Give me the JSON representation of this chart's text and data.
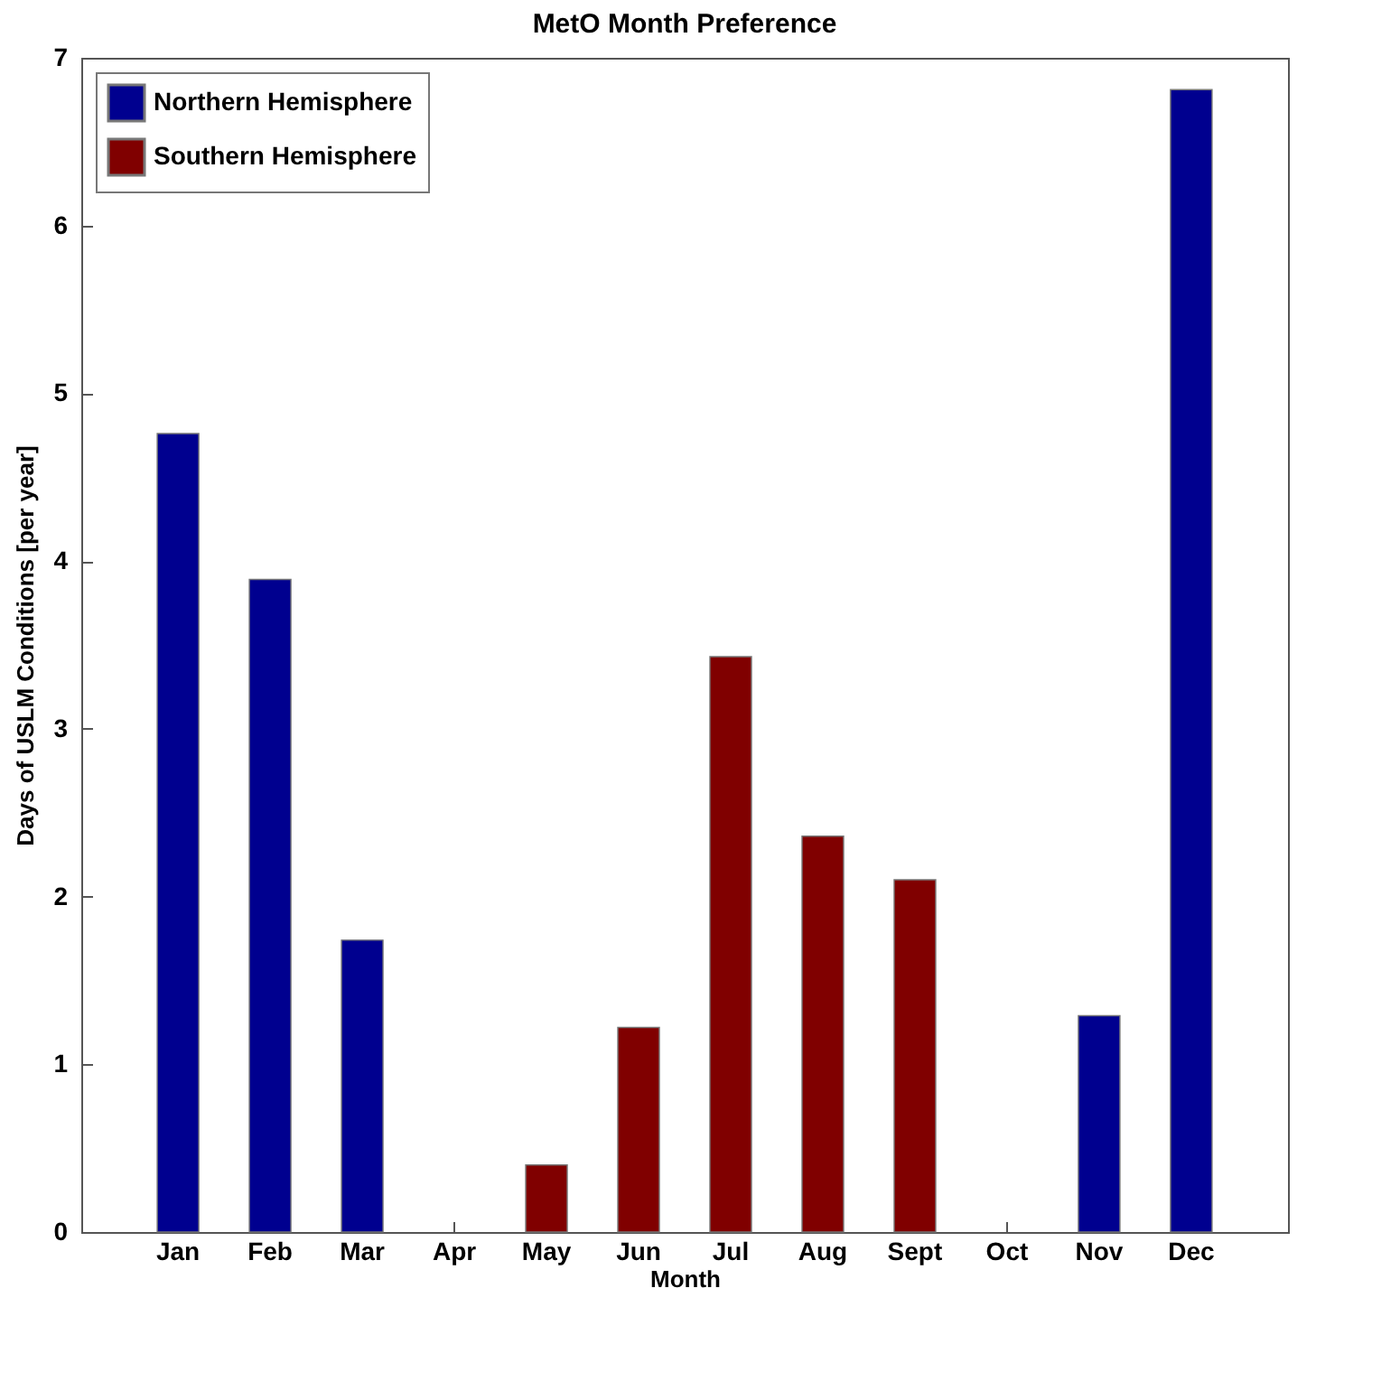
{
  "chart_data": {
    "type": "bar",
    "title": "MetO Month Preference",
    "xlabel": "Month",
    "ylabel": "Days of USLM Conditions [per year]",
    "categories": [
      "Jan",
      "Feb",
      "Mar",
      "Apr",
      "May",
      "Jun",
      "Jul",
      "Aug",
      "Sept",
      "Oct",
      "Nov",
      "Dec"
    ],
    "series": [
      {
        "name": "Northern Hemisphere",
        "color": "#00008f",
        "values": [
          4.76,
          3.89,
          1.74,
          null,
          null,
          null,
          null,
          null,
          null,
          null,
          1.29,
          6.81
        ]
      },
      {
        "name": "Southern Hemisphere",
        "color": "#800000",
        "values": [
          null,
          null,
          null,
          null,
          0.4,
          1.22,
          3.43,
          2.36,
          2.1,
          null,
          null,
          null
        ]
      }
    ],
    "ylim": [
      0,
      7
    ],
    "yticks": [
      0,
      1,
      2,
      3,
      4,
      5,
      6,
      7
    ],
    "grid": false,
    "legend": "top left"
  }
}
